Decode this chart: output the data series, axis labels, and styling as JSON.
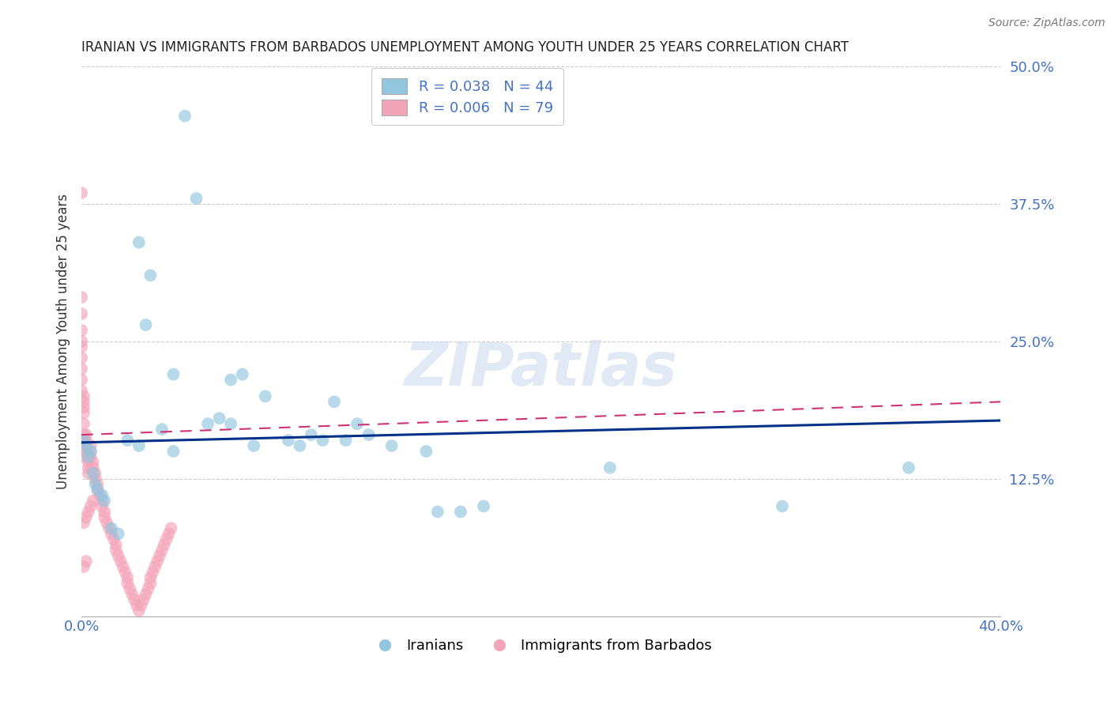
{
  "title": "IRANIAN VS IMMIGRANTS FROM BARBADOS UNEMPLOYMENT AMONG YOUTH UNDER 25 YEARS CORRELATION CHART",
  "source": "Source: ZipAtlas.com",
  "ylabel": "Unemployment Among Youth under 25 years",
  "xlim": [
    0.0,
    0.4
  ],
  "ylim": [
    0.0,
    0.5
  ],
  "xticks": [
    0.0,
    0.05,
    0.1,
    0.15,
    0.2,
    0.25,
    0.3,
    0.35,
    0.4
  ],
  "yticks_right": [
    0.0,
    0.125,
    0.25,
    0.375,
    0.5
  ],
  "ytick_labels_right": [
    "",
    "12.5%",
    "25.0%",
    "37.5%",
    "50.0%"
  ],
  "watermark": "ZIPatlas",
  "legend_box": {
    "r_blue": 0.038,
    "n_blue": 44,
    "r_pink": 0.006,
    "n_pink": 79
  },
  "iranians_x": [
    0.001,
    0.002,
    0.003,
    0.004,
    0.005,
    0.006,
    0.007,
    0.009,
    0.01,
    0.013,
    0.016,
    0.02,
    0.025,
    0.025,
    0.028,
    0.03,
    0.035,
    0.04,
    0.04,
    0.045,
    0.05,
    0.055,
    0.06,
    0.065,
    0.065,
    0.07,
    0.075,
    0.08,
    0.09,
    0.095,
    0.1,
    0.105,
    0.11,
    0.115,
    0.12,
    0.125,
    0.135,
    0.15,
    0.155,
    0.165,
    0.175,
    0.23,
    0.305,
    0.36
  ],
  "iranians_y": [
    0.16,
    0.155,
    0.145,
    0.15,
    0.13,
    0.12,
    0.115,
    0.11,
    0.105,
    0.08,
    0.075,
    0.16,
    0.155,
    0.34,
    0.265,
    0.31,
    0.17,
    0.15,
    0.22,
    0.455,
    0.38,
    0.175,
    0.18,
    0.215,
    0.175,
    0.22,
    0.155,
    0.2,
    0.16,
    0.155,
    0.165,
    0.16,
    0.195,
    0.16,
    0.175,
    0.165,
    0.155,
    0.15,
    0.095,
    0.095,
    0.1,
    0.135,
    0.1,
    0.135
  ],
  "barbados_x": [
    0.0,
    0.0,
    0.0,
    0.0,
    0.0,
    0.0,
    0.0,
    0.0,
    0.0,
    0.0,
    0.001,
    0.001,
    0.001,
    0.001,
    0.001,
    0.001,
    0.001,
    0.001,
    0.002,
    0.002,
    0.002,
    0.002,
    0.003,
    0.003,
    0.003,
    0.003,
    0.004,
    0.004,
    0.004,
    0.005,
    0.005,
    0.006,
    0.006,
    0.007,
    0.007,
    0.008,
    0.009,
    0.009,
    0.01,
    0.01,
    0.011,
    0.012,
    0.013,
    0.014,
    0.015,
    0.015,
    0.016,
    0.017,
    0.018,
    0.019,
    0.02,
    0.02,
    0.021,
    0.022,
    0.023,
    0.024,
    0.025,
    0.026,
    0.027,
    0.028,
    0.029,
    0.03,
    0.03,
    0.031,
    0.032,
    0.033,
    0.034,
    0.035,
    0.036,
    0.037,
    0.038,
    0.039,
    0.001,
    0.002,
    0.003,
    0.004,
    0.005,
    0.002,
    0.001
  ],
  "barbados_y": [
    0.385,
    0.29,
    0.275,
    0.26,
    0.25,
    0.245,
    0.235,
    0.225,
    0.215,
    0.205,
    0.2,
    0.195,
    0.19,
    0.185,
    0.175,
    0.165,
    0.155,
    0.145,
    0.165,
    0.16,
    0.155,
    0.15,
    0.145,
    0.14,
    0.135,
    0.13,
    0.155,
    0.15,
    0.145,
    0.14,
    0.135,
    0.13,
    0.125,
    0.12,
    0.115,
    0.11,
    0.105,
    0.1,
    0.095,
    0.09,
    0.085,
    0.08,
    0.075,
    0.07,
    0.065,
    0.06,
    0.055,
    0.05,
    0.045,
    0.04,
    0.035,
    0.03,
    0.025,
    0.02,
    0.015,
    0.01,
    0.005,
    0.01,
    0.015,
    0.02,
    0.025,
    0.03,
    0.035,
    0.04,
    0.045,
    0.05,
    0.055,
    0.06,
    0.065,
    0.07,
    0.075,
    0.08,
    0.085,
    0.09,
    0.095,
    0.1,
    0.105,
    0.05,
    0.045
  ],
  "color_blue": "#92c5de",
  "color_pink": "#f4a4b8",
  "line_blue": "#003087",
  "line_pink": "#cc3377",
  "trendline_blue_x0": 0.0,
  "trendline_blue_y0": 0.158,
  "trendline_blue_x1": 0.4,
  "trendline_blue_y1": 0.178,
  "trendline_pink_x0": 0.0,
  "trendline_pink_y0": 0.165,
  "trendline_pink_x1": 0.4,
  "trendline_pink_y1": 0.195,
  "background_color": "#ffffff",
  "grid_color": "#cccccc"
}
